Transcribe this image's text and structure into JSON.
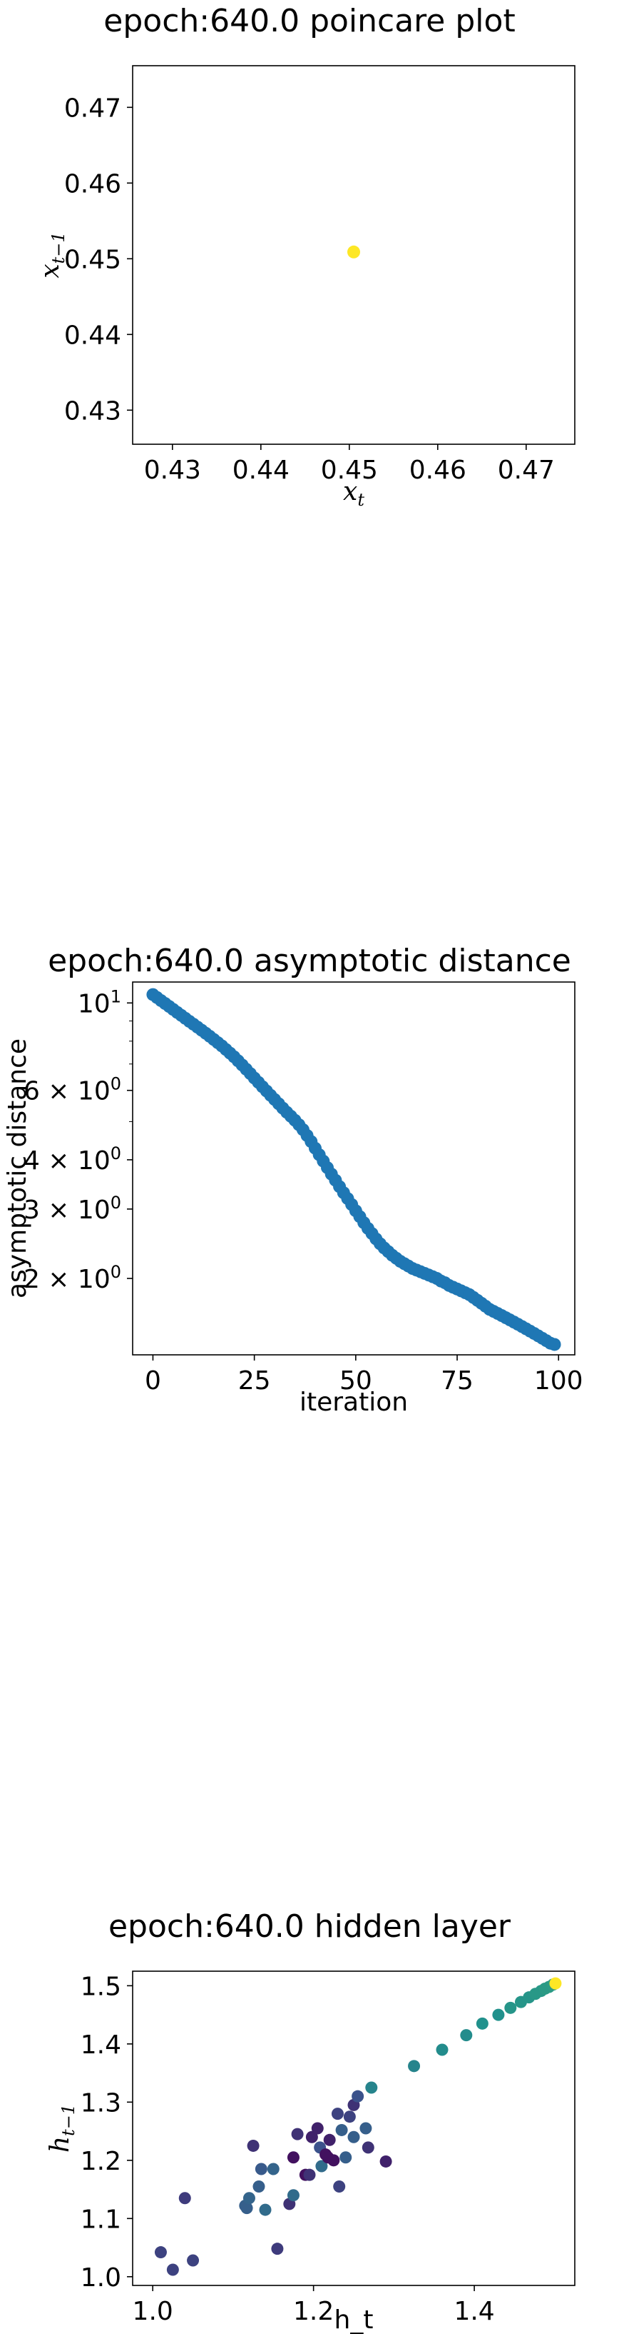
{
  "chart_data": [
    {
      "type": "scatter",
      "title": "epoch:640.0 poincare plot",
      "xlabel": "x_t",
      "ylabel": "x_{t-1}",
      "xlim": [
        0.4255,
        0.4755
      ],
      "ylim": [
        0.4255,
        0.4755
      ],
      "xticks": [
        "0.43",
        "0.44",
        "0.45",
        "0.46",
        "0.47"
      ],
      "xtick_values": [
        0.43,
        0.44,
        0.45,
        0.46,
        0.47
      ],
      "yticks": [
        "0.43",
        "0.44",
        "0.45",
        "0.46",
        "0.47"
      ],
      "ytick_values": [
        0.43,
        0.44,
        0.45,
        0.46,
        0.47
      ],
      "points": [
        {
          "x": 0.4505,
          "y": 0.4509
        }
      ],
      "color": "#fde725"
    },
    {
      "type": "scatter",
      "title": "epoch:640.0 asymptotic distance",
      "xlabel": "iteration",
      "ylabel": "asymptotic distance",
      "yscale": "log",
      "xlim": [
        -5,
        104
      ],
      "ylim": [
        1.28,
        11.3
      ],
      "xticks": [
        "0",
        "25",
        "50",
        "75",
        "100"
      ],
      "xtick_values": [
        0,
        25,
        50,
        75,
        100
      ],
      "yticks": [
        "10^1",
        "6 × 10^0",
        "4 × 10^0",
        "3 × 10^0",
        "2 × 10^0"
      ],
      "ytick_values": [
        10,
        6,
        4,
        3,
        2
      ],
      "color": "#1f77b4",
      "x": [
        0,
        1,
        2,
        3,
        4,
        5,
        6,
        7,
        8,
        9,
        10,
        11,
        12,
        13,
        14,
        15,
        16,
        17,
        18,
        19,
        20,
        21,
        22,
        23,
        24,
        25,
        26,
        27,
        28,
        29,
        30,
        31,
        32,
        33,
        34,
        35,
        36,
        37,
        38,
        39,
        40,
        41,
        42,
        43,
        44,
        45,
        46,
        47,
        48,
        49,
        50,
        51,
        52,
        53,
        54,
        55,
        56,
        57,
        58,
        59,
        60,
        61,
        62,
        63,
        64,
        65,
        66,
        67,
        68,
        69,
        70,
        71,
        72,
        73,
        74,
        75,
        76,
        77,
        78,
        79,
        80,
        81,
        82,
        83,
        84,
        85,
        86,
        87,
        88,
        89,
        90,
        91,
        92,
        93,
        94,
        95,
        96,
        97,
        98,
        99
      ],
      "y": [
        10.5,
        10.32,
        10.14,
        9.97,
        9.8,
        9.63,
        9.46,
        9.3,
        9.14,
        8.98,
        8.83,
        8.68,
        8.53,
        8.38,
        8.23,
        8.08,
        7.93,
        7.78,
        7.62,
        7.46,
        7.3,
        7.13,
        6.96,
        6.79,
        6.62,
        6.45,
        6.29,
        6.13,
        5.98,
        5.83,
        5.69,
        5.55,
        5.41,
        5.28,
        5.16,
        5.04,
        4.91,
        4.77,
        4.61,
        4.45,
        4.28,
        4.12,
        3.97,
        3.82,
        3.68,
        3.55,
        3.42,
        3.3,
        3.19,
        3.08,
        2.97,
        2.87,
        2.77,
        2.68,
        2.6,
        2.52,
        2.45,
        2.39,
        2.34,
        2.29,
        2.25,
        2.21,
        2.18,
        2.15,
        2.12,
        2.1,
        2.08,
        2.06,
        2.04,
        2.02,
        2.0,
        1.97,
        1.95,
        1.92,
        1.9,
        1.88,
        1.86,
        1.84,
        1.82,
        1.79,
        1.76,
        1.73,
        1.7,
        1.67,
        1.65,
        1.63,
        1.61,
        1.59,
        1.57,
        1.55,
        1.53,
        1.51,
        1.49,
        1.47,
        1.45,
        1.43,
        1.41,
        1.39,
        1.37,
        1.36
      ]
    },
    {
      "type": "scatter",
      "title": "epoch:640.0 hidden layer",
      "xlabel": "h_t",
      "ylabel": "h_{t-1}",
      "xlim": [
        0.975,
        1.525
      ],
      "ylim": [
        0.985,
        1.525
      ],
      "xticks": [
        "1.0",
        "1.2",
        "1.4"
      ],
      "xtick_values": [
        1.0,
        1.2,
        1.4
      ],
      "yticks": [
        "1.0",
        "1.1",
        "1.2",
        "1.3",
        "1.4",
        "1.5"
      ],
      "ytick_values": [
        1.0,
        1.1,
        1.2,
        1.3,
        1.4,
        1.5
      ],
      "colormap": "viridis",
      "points": [
        {
          "x": 1.01,
          "y": 1.042,
          "c": 0.2
        },
        {
          "x": 1.025,
          "y": 1.012,
          "c": 0.2
        },
        {
          "x": 1.05,
          "y": 1.028,
          "c": 0.2
        },
        {
          "x": 1.04,
          "y": 1.135,
          "c": 0.18
        },
        {
          "x": 1.155,
          "y": 1.048,
          "c": 0.18
        },
        {
          "x": 1.115,
          "y": 1.122,
          "c": 0.3
        },
        {
          "x": 1.117,
          "y": 1.118,
          "c": 0.3
        },
        {
          "x": 1.12,
          "y": 1.135,
          "c": 0.32
        },
        {
          "x": 1.14,
          "y": 1.115,
          "c": 0.35
        },
        {
          "x": 1.132,
          "y": 1.155,
          "c": 0.3
        },
        {
          "x": 1.135,
          "y": 1.185,
          "c": 0.28
        },
        {
          "x": 1.125,
          "y": 1.225,
          "c": 0.15
        },
        {
          "x": 1.15,
          "y": 1.185,
          "c": 0.32
        },
        {
          "x": 1.17,
          "y": 1.125,
          "c": 0.15
        },
        {
          "x": 1.175,
          "y": 1.14,
          "c": 0.35
        },
        {
          "x": 1.175,
          "y": 1.205,
          "c": 0.05
        },
        {
          "x": 1.18,
          "y": 1.245,
          "c": 0.15
        },
        {
          "x": 1.19,
          "y": 1.175,
          "c": 0.05
        },
        {
          "x": 1.195,
          "y": 1.175,
          "c": 0.15
        },
        {
          "x": 1.198,
          "y": 1.24,
          "c": 0.1
        },
        {
          "x": 1.205,
          "y": 1.255,
          "c": 0.1
        },
        {
          "x": 1.208,
          "y": 1.222,
          "c": 0.25
        },
        {
          "x": 1.21,
          "y": 1.19,
          "c": 0.35
        },
        {
          "x": 1.215,
          "y": 1.21,
          "c": 0.05
        },
        {
          "x": 1.218,
          "y": 1.205,
          "c": 0.05
        },
        {
          "x": 1.22,
          "y": 1.235,
          "c": 0.1
        },
        {
          "x": 1.225,
          "y": 1.2,
          "c": 0.05
        },
        {
          "x": 1.23,
          "y": 1.28,
          "c": 0.2
        },
        {
          "x": 1.232,
          "y": 1.155,
          "c": 0.2
        },
        {
          "x": 1.235,
          "y": 1.252,
          "c": 0.3
        },
        {
          "x": 1.24,
          "y": 1.205,
          "c": 0.3
        },
        {
          "x": 1.245,
          "y": 1.275,
          "c": 0.2
        },
        {
          "x": 1.25,
          "y": 1.24,
          "c": 0.3
        },
        {
          "x": 1.25,
          "y": 1.295,
          "c": 0.15
        },
        {
          "x": 1.255,
          "y": 1.31,
          "c": 0.25
        },
        {
          "x": 1.265,
          "y": 1.255,
          "c": 0.3
        },
        {
          "x": 1.268,
          "y": 1.222,
          "c": 0.15
        },
        {
          "x": 1.272,
          "y": 1.325,
          "c": 0.45
        },
        {
          "x": 1.29,
          "y": 1.198,
          "c": 0.1
        },
        {
          "x": 1.325,
          "y": 1.362,
          "c": 0.45
        },
        {
          "x": 1.36,
          "y": 1.39,
          "c": 0.48
        },
        {
          "x": 1.39,
          "y": 1.415,
          "c": 0.48
        },
        {
          "x": 1.41,
          "y": 1.435,
          "c": 0.5
        },
        {
          "x": 1.43,
          "y": 1.45,
          "c": 0.5
        },
        {
          "x": 1.445,
          "y": 1.462,
          "c": 0.52
        },
        {
          "x": 1.458,
          "y": 1.472,
          "c": 0.52
        },
        {
          "x": 1.468,
          "y": 1.48,
          "c": 0.52
        },
        {
          "x": 1.476,
          "y": 1.486,
          "c": 0.53
        },
        {
          "x": 1.483,
          "y": 1.491,
          "c": 0.53
        },
        {
          "x": 1.488,
          "y": 1.495,
          "c": 0.54
        },
        {
          "x": 1.493,
          "y": 1.498,
          "c": 0.54
        },
        {
          "x": 1.498,
          "y": 1.502,
          "c": 0.55
        },
        {
          "x": 1.501,
          "y": 1.504,
          "c": 1.0
        }
      ]
    }
  ]
}
